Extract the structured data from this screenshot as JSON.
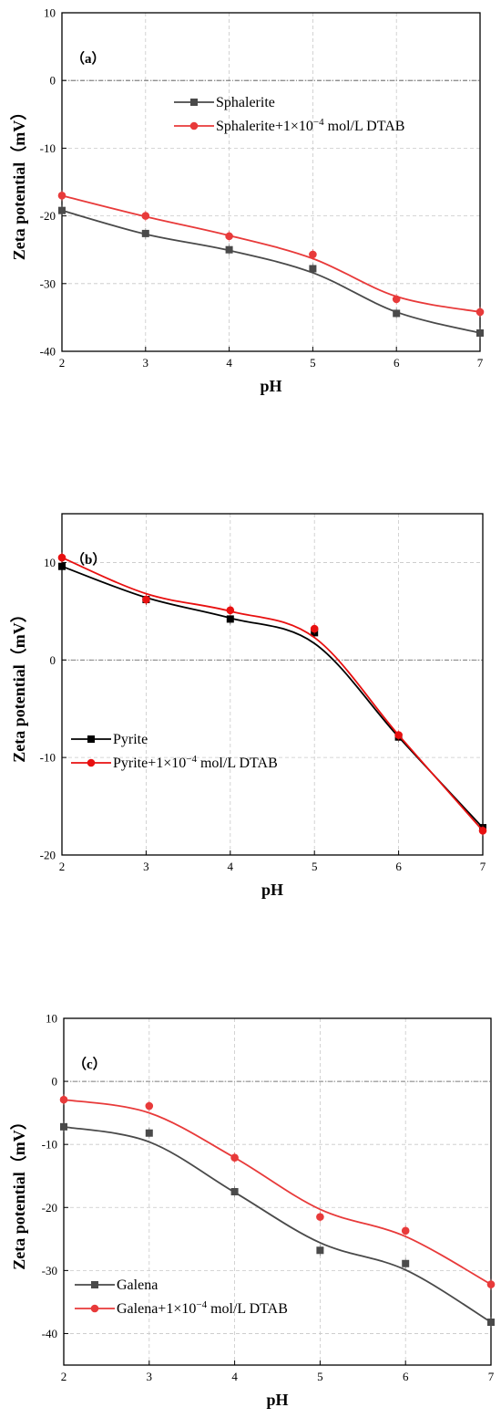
{
  "chart_data": [
    {
      "type": "line",
      "panel_label": "（a）",
      "xlabel": "pH",
      "ylabel": "Zeta potential（mV）",
      "xlim": [
        2,
        7
      ],
      "ylim": [
        -40,
        10
      ],
      "xticks": [
        "2",
        "3",
        "4",
        "5",
        "6",
        "7"
      ],
      "yticks": [
        "-40",
        "-30",
        "-20",
        "-10",
        "0",
        "10"
      ],
      "grid": true,
      "legend_position": "top-right",
      "series": [
        {
          "name": "Sphalerite",
          "color": "#4a4a4a",
          "marker": "square",
          "x": [
            2,
            3,
            4,
            5,
            6,
            7
          ],
          "y": [
            -19.2,
            -22.6,
            -25.0,
            -27.8,
            -34.4,
            -37.3
          ],
          "fit": [
            -19.2,
            -22.7,
            -25.1,
            -28.4,
            -34.2,
            -37.3
          ]
        },
        {
          "name": "Sphalerite+1×10",
          "name_sup": "−4",
          "name_suffix": " mol/L DTAB",
          "color": "#e83a3a",
          "marker": "circle",
          "x": [
            2,
            3,
            4,
            5,
            6,
            7
          ],
          "y": [
            -17.0,
            -20.0,
            -23.0,
            -25.7,
            -32.3,
            -34.2
          ],
          "fit": [
            -17.0,
            -20.1,
            -22.9,
            -26.3,
            -31.9,
            -34.2
          ]
        }
      ]
    },
    {
      "type": "line",
      "panel_label": "（b）",
      "xlabel": "pH",
      "ylabel": "Zeta potential（mV）",
      "xlim": [
        2,
        7
      ],
      "ylim": [
        -20,
        15
      ],
      "xticks": [
        "2",
        "3",
        "4",
        "5",
        "6",
        "7"
      ],
      "yticks": [
        "-20",
        "-10",
        "0",
        "10"
      ],
      "grid": true,
      "legend_position": "lower-left",
      "series": [
        {
          "name": "Pyrite",
          "color": "#000000",
          "marker": "square",
          "x": [
            2,
            3,
            4,
            5,
            6,
            7
          ],
          "y": [
            9.6,
            6.2,
            4.2,
            2.8,
            -7.9,
            -17.2
          ],
          "fit": [
            9.6,
            6.4,
            4.3,
            1.7,
            -7.9,
            -17.2
          ]
        },
        {
          "name": "Pyrite+1×10",
          "name_sup": "−4",
          "name_suffix": " mol/L DTAB",
          "color": "#e81010",
          "marker": "circle",
          "x": [
            2,
            3,
            4,
            5,
            6,
            7
          ],
          "y": [
            10.5,
            6.2,
            5.1,
            3.2,
            -7.7,
            -17.5
          ],
          "fit": [
            10.5,
            6.8,
            5.0,
            2.3,
            -7.7,
            -17.5
          ]
        }
      ]
    },
    {
      "type": "line",
      "panel_label": "（c）",
      "xlabel": "pH",
      "ylabel": "Zeta potential（mV）",
      "xlim": [
        2,
        7
      ],
      "ylim": [
        -45,
        10
      ],
      "xticks": [
        "2",
        "3",
        "4",
        "5",
        "6",
        "7"
      ],
      "yticks": [
        "-40",
        "-30",
        "-20",
        "-10",
        "0",
        "10"
      ],
      "grid": true,
      "legend_position": "lower-left",
      "series": [
        {
          "name": "Galena",
          "color": "#4a4a4a",
          "marker": "square",
          "x": [
            2,
            3,
            4,
            5,
            6,
            7
          ],
          "y": [
            -7.2,
            -8.2,
            -17.5,
            -26.8,
            -28.9,
            -38.2
          ],
          "fit": [
            -7.2,
            -9.6,
            -17.6,
            -25.6,
            -29.9,
            -38.2
          ]
        },
        {
          "name": "Galena+1×10",
          "name_sup": "−4",
          "name_suffix": " mol/L DTAB",
          "color": "#e83a3a",
          "marker": "circle",
          "x": [
            2,
            3,
            4,
            5,
            6,
            7
          ],
          "y": [
            -2.9,
            -3.9,
            -12.1,
            -21.5,
            -23.7,
            -32.2
          ],
          "fit": [
            -2.9,
            -5.0,
            -12.1,
            -20.3,
            -24.6,
            -32.2
          ]
        }
      ]
    }
  ]
}
